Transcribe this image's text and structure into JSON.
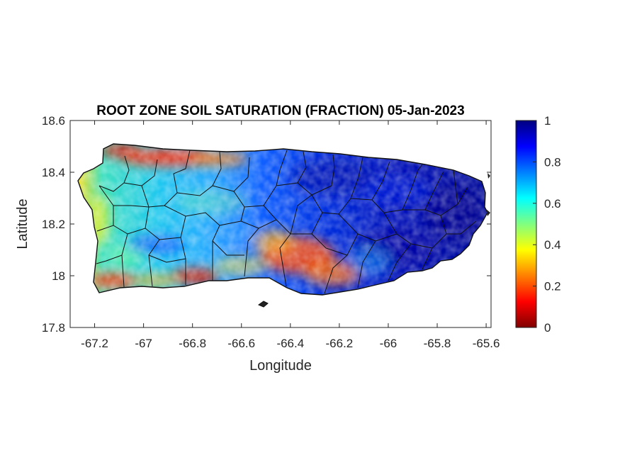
{
  "title": "ROOT ZONE SOIL SATURATION (FRACTION) 05-Jan-2023",
  "axes": {
    "xlabel": "Longitude",
    "ylabel": "Latitude",
    "xlim": [
      -67.3,
      -65.58
    ],
    "ylim": [
      17.8,
      18.6
    ],
    "xticks": [
      "-67.2",
      "-67",
      "-66.8",
      "-66.6",
      "-66.4",
      "-66.2",
      "-66",
      "-65.8",
      "-65.6"
    ],
    "xtick_values": [
      -67.2,
      -67.0,
      -66.8,
      -66.6,
      -66.4,
      -66.2,
      -66.0,
      -65.8,
      -65.6
    ],
    "yticks": [
      "18.6",
      "18.4",
      "18.2",
      "18",
      "17.8"
    ],
    "ytick_values": [
      18.6,
      18.4,
      18.2,
      18.0,
      17.8
    ]
  },
  "colorbar": {
    "colormap": "jet",
    "range": [
      0,
      1
    ],
    "ticks": [
      "1",
      "0.8",
      "0.6",
      "0.4",
      "0.2",
      "0"
    ],
    "tick_values": [
      1,
      0.8,
      0.6,
      0.4,
      0.2,
      0
    ]
  },
  "map": {
    "region": "Puerto Rico",
    "overlay": "municipality boundaries",
    "regions": [
      {
        "area": "northwest coast",
        "saturation": 0.15
      },
      {
        "area": "west",
        "saturation": 0.55
      },
      {
        "area": "central-west",
        "saturation": 0.6
      },
      {
        "area": "south-central coast",
        "saturation": 0.2
      },
      {
        "area": "north-central",
        "saturation": 0.85
      },
      {
        "area": "east",
        "saturation": 0.95
      }
    ]
  }
}
